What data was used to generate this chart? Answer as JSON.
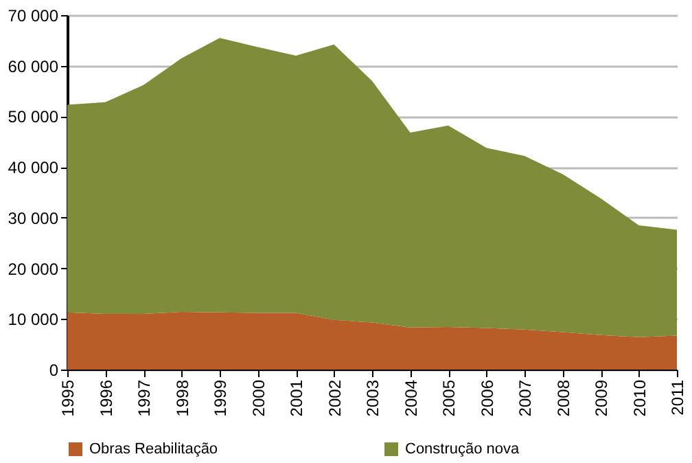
{
  "chart_data": {
    "type": "area",
    "stacked": true,
    "categories": [
      "1995",
      "1996",
      "1997",
      "1998",
      "1999",
      "2000",
      "2001",
      "2002",
      "2003",
      "2004",
      "2005",
      "2006",
      "2007",
      "2008",
      "2009",
      "2010",
      "2011"
    ],
    "series": [
      {
        "name": "Obras Reabilitação",
        "color": "#b85c28",
        "values": [
          11300,
          11000,
          11000,
          11400,
          11300,
          11200,
          11200,
          9800,
          9300,
          8300,
          8400,
          8200,
          7900,
          7400,
          6800,
          6400,
          6700
        ]
      },
      {
        "name": "Construção nova",
        "color": "#7f8c3a",
        "values": [
          41000,
          41800,
          45200,
          50100,
          54200,
          52500,
          50800,
          54400,
          47700,
          38500,
          39800,
          35600,
          34300,
          31200,
          27000,
          22100,
          20900
        ]
      }
    ],
    "ylim": [
      0,
      70000
    ],
    "yticks": [
      {
        "value": 0,
        "label": "0"
      },
      {
        "value": 10000,
        "label": "10 000"
      },
      {
        "value": 20000,
        "label": "20 000"
      },
      {
        "value": 30000,
        "label": "30 000"
      },
      {
        "value": 40000,
        "label": "40 000"
      },
      {
        "value": 50000,
        "label": "50 000"
      },
      {
        "value": 60000,
        "label": "60 000"
      },
      {
        "value": 70000,
        "label": "70 000"
      }
    ],
    "grid": "y",
    "legend": "bottom"
  }
}
